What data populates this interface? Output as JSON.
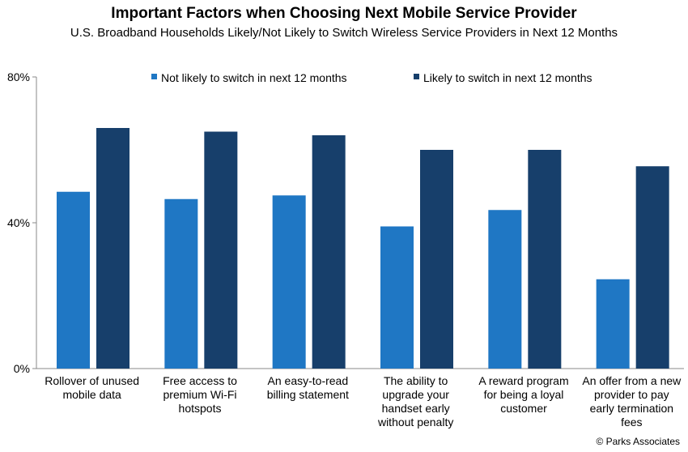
{
  "chart_data": {
    "type": "bar",
    "title": "Important Factors when Choosing Next Mobile Service Provider",
    "subtitle": "U.S. Broadband Households Likely/Not Likely to Switch Wireless Service Providers in Next 12 Months",
    "categories": [
      [
        "Rollover of unused",
        "mobile data"
      ],
      [
        "Free access to",
        "premium Wi-Fi",
        "hotspots"
      ],
      [
        "An easy-to-read",
        "billing statement"
      ],
      [
        "The ability to",
        "upgrade your",
        "handset early",
        "without penalty"
      ],
      [
        "A reward program",
        "for being a loyal",
        "customer"
      ],
      [
        "An offer from a new",
        "provider to pay",
        "early termination",
        "fees"
      ]
    ],
    "series": [
      {
        "name": "Not likely to switch in next 12 months",
        "color": "#1f77c4",
        "values": [
          48.5,
          46.5,
          47.5,
          39,
          43.5,
          24.5
        ]
      },
      {
        "name": "Likely to switch in next 12 months",
        "color": "#173f6b",
        "values": [
          66,
          65,
          64,
          60,
          60,
          55.5
        ]
      }
    ],
    "ylim": [
      0,
      80
    ],
    "yticks": [
      "0%",
      "40%",
      "80%"
    ],
    "ytick_values": [
      0,
      40,
      80
    ],
    "legend": "top",
    "grid": false
  },
  "footer": "© Parks Associates"
}
